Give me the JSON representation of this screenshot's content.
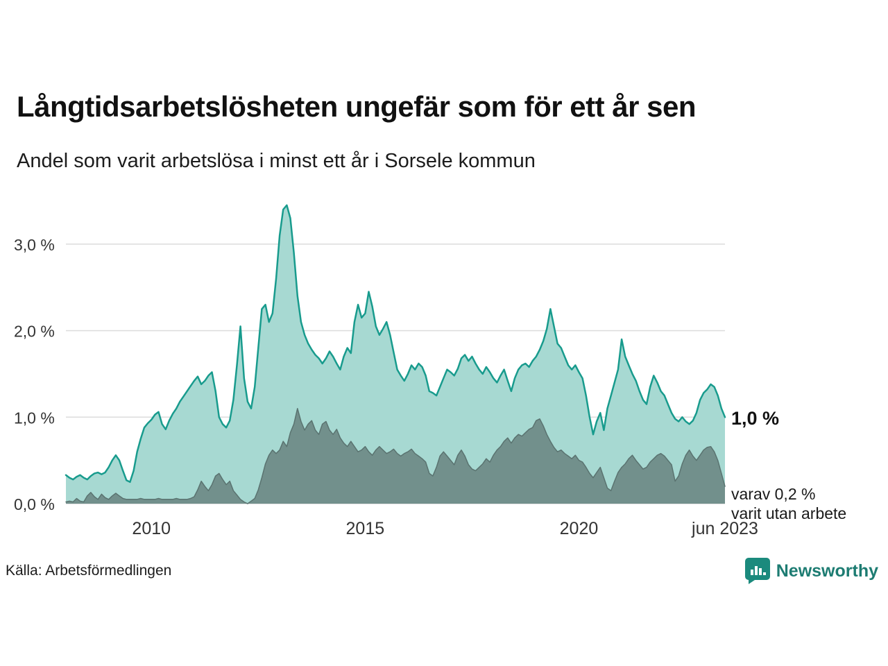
{
  "header": {
    "title": "Långtidsarbetslösheten ungefär som för ett år sen",
    "subtitle": "Andel som varit arbetslösa i minst ett år i Sorsele kommun"
  },
  "annotations": {
    "end_value": "1,0 %",
    "subset_line1": "varav 0,2 %",
    "subset_line2": "varit utan arbete"
  },
  "footer": {
    "source": "Källa: Arbetsförmedlingen",
    "brand": "Newsworthy"
  },
  "colors": {
    "accent_teal": "#189b8d",
    "area_light": "#a7d9d2",
    "area_dark": "#72908c",
    "grid": "#dcdcdc",
    "text_dark": "#333333",
    "brand_teal": "#1d7c72"
  },
  "chart_data": {
    "type": "area",
    "title": "Långtidsarbetslösheten ungefär som för ett år sen",
    "subtitle": "Andel som varit arbetslösa i minst ett år i Sorsele kommun",
    "x_start": "2008-01",
    "x_end": "2023-06",
    "x_frequency": "monthly",
    "xlim": [
      2008.0,
      2023.4167
    ],
    "ylim": [
      0,
      3.5
    ],
    "grid": true,
    "grid_color": "#dcdcdc",
    "legend_position": "none",
    "x_ticks": [
      {
        "pos": 2010.0,
        "label": "2010"
      },
      {
        "pos": 2015.0,
        "label": "2015"
      },
      {
        "pos": 2020.0,
        "label": "2020"
      },
      {
        "pos": 2023.4167,
        "label": "jun 2023"
      }
    ],
    "y_ticks": [
      {
        "value": 0,
        "label": "0,0 %"
      },
      {
        "value": 1,
        "label": "1,0 %"
      },
      {
        "value": 2,
        "label": "2,0 %"
      },
      {
        "value": 3,
        "label": "3,0 %"
      }
    ],
    "series": [
      {
        "id": "total",
        "name": "Andel som varit arbetslösa i minst ett år",
        "end_label": "1,0 %",
        "color_fill": "#a7d9d2",
        "color_line": "#189b8d",
        "line_width": 2.5,
        "values": [
          0.33,
          0.3,
          0.28,
          0.31,
          0.33,
          0.3,
          0.28,
          0.32,
          0.35,
          0.36,
          0.34,
          0.36,
          0.42,
          0.5,
          0.56,
          0.5,
          0.38,
          0.27,
          0.25,
          0.38,
          0.6,
          0.75,
          0.88,
          0.93,
          0.97,
          1.03,
          1.06,
          0.92,
          0.86,
          0.96,
          1.04,
          1.1,
          1.18,
          1.24,
          1.3,
          1.36,
          1.42,
          1.47,
          1.38,
          1.42,
          1.48,
          1.52,
          1.3,
          1.0,
          0.92,
          0.88,
          0.96,
          1.2,
          1.6,
          2.05,
          1.45,
          1.18,
          1.1,
          1.35,
          1.8,
          2.25,
          2.3,
          2.1,
          2.2,
          2.6,
          3.1,
          3.4,
          3.45,
          3.3,
          2.9,
          2.4,
          2.1,
          1.95,
          1.85,
          1.78,
          1.72,
          1.68,
          1.62,
          1.68,
          1.76,
          1.7,
          1.62,
          1.55,
          1.7,
          1.8,
          1.74,
          2.1,
          2.3,
          2.15,
          2.2,
          2.45,
          2.28,
          2.05,
          1.95,
          2.02,
          2.1,
          1.95,
          1.75,
          1.55,
          1.48,
          1.42,
          1.5,
          1.6,
          1.55,
          1.62,
          1.58,
          1.48,
          1.3,
          1.28,
          1.25,
          1.35,
          1.45,
          1.55,
          1.52,
          1.48,
          1.56,
          1.68,
          1.72,
          1.65,
          1.7,
          1.62,
          1.55,
          1.5,
          1.58,
          1.52,
          1.45,
          1.4,
          1.48,
          1.55,
          1.42,
          1.3,
          1.45,
          1.55,
          1.6,
          1.62,
          1.58,
          1.65,
          1.7,
          1.78,
          1.88,
          2.02,
          2.25,
          2.05,
          1.85,
          1.8,
          1.7,
          1.6,
          1.55,
          1.6,
          1.52,
          1.45,
          1.25,
          1.0,
          0.8,
          0.95,
          1.05,
          0.85,
          1.1,
          1.25,
          1.4,
          1.55,
          1.9,
          1.7,
          1.6,
          1.5,
          1.42,
          1.3,
          1.2,
          1.15,
          1.35,
          1.48,
          1.4,
          1.3,
          1.25,
          1.15,
          1.05,
          0.98,
          0.95,
          1.0,
          0.95,
          0.92,
          0.96,
          1.05,
          1.2,
          1.28,
          1.32,
          1.38,
          1.35,
          1.25,
          1.1,
          1.0
        ]
      },
      {
        "id": "subset",
        "name": "varav varit utan arbete",
        "end_label": "varav 0,2 % varit utan arbete",
        "color_fill": "#72908c",
        "color_line": "#5a7370",
        "line_width": 1.5,
        "values": [
          0.02,
          0.03,
          0.02,
          0.06,
          0.03,
          0.02,
          0.09,
          0.13,
          0.08,
          0.05,
          0.11,
          0.07,
          0.05,
          0.09,
          0.12,
          0.09,
          0.06,
          0.05,
          0.05,
          0.05,
          0.05,
          0.06,
          0.05,
          0.05,
          0.05,
          0.05,
          0.06,
          0.05,
          0.05,
          0.05,
          0.05,
          0.06,
          0.05,
          0.05,
          0.05,
          0.06,
          0.08,
          0.16,
          0.26,
          0.2,
          0.15,
          0.22,
          0.32,
          0.35,
          0.28,
          0.22,
          0.26,
          0.15,
          0.1,
          0.05,
          0.02,
          0.0,
          0.03,
          0.06,
          0.16,
          0.3,
          0.46,
          0.56,
          0.62,
          0.58,
          0.62,
          0.72,
          0.66,
          0.82,
          0.92,
          1.1,
          0.95,
          0.85,
          0.92,
          0.96,
          0.85,
          0.8,
          0.92,
          0.95,
          0.85,
          0.8,
          0.86,
          0.76,
          0.7,
          0.66,
          0.72,
          0.66,
          0.6,
          0.62,
          0.66,
          0.6,
          0.56,
          0.62,
          0.66,
          0.62,
          0.58,
          0.6,
          0.63,
          0.58,
          0.55,
          0.58,
          0.6,
          0.63,
          0.58,
          0.55,
          0.52,
          0.48,
          0.35,
          0.32,
          0.42,
          0.55,
          0.6,
          0.55,
          0.5,
          0.45,
          0.56,
          0.62,
          0.55,
          0.45,
          0.4,
          0.38,
          0.42,
          0.46,
          0.52,
          0.48,
          0.56,
          0.62,
          0.66,
          0.72,
          0.76,
          0.7,
          0.76,
          0.8,
          0.78,
          0.82,
          0.86,
          0.88,
          0.96,
          0.98,
          0.9,
          0.8,
          0.72,
          0.65,
          0.6,
          0.62,
          0.58,
          0.55,
          0.52,
          0.56,
          0.5,
          0.48,
          0.42,
          0.35,
          0.3,
          0.36,
          0.42,
          0.3,
          0.18,
          0.15,
          0.26,
          0.36,
          0.42,
          0.46,
          0.52,
          0.56,
          0.5,
          0.45,
          0.4,
          0.42,
          0.48,
          0.52,
          0.56,
          0.58,
          0.55,
          0.5,
          0.45,
          0.26,
          0.32,
          0.46,
          0.56,
          0.62,
          0.55,
          0.5,
          0.56,
          0.62,
          0.65,
          0.66,
          0.6,
          0.5,
          0.35,
          0.2
        ]
      }
    ]
  }
}
